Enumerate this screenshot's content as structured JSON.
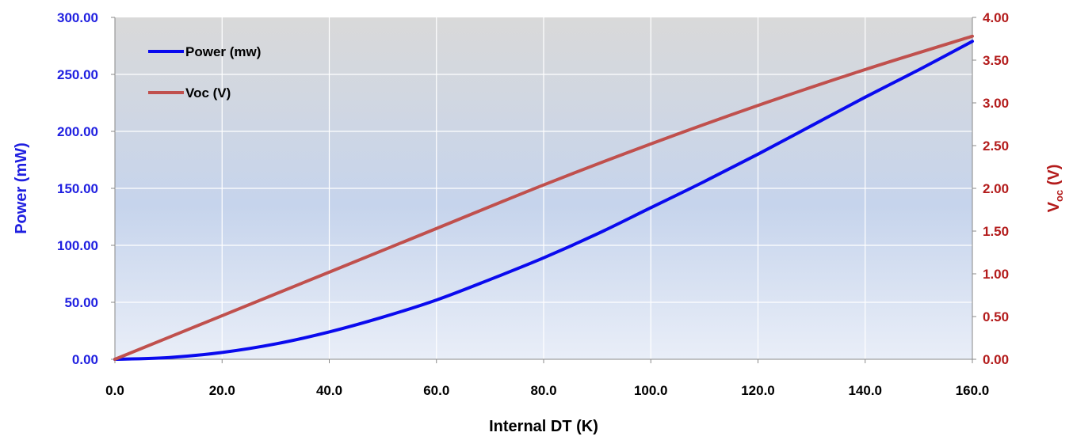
{
  "chart_data": {
    "type": "line",
    "title": "",
    "xlabel": "Internal DT (K)",
    "ylabel_left": "Power (mW)",
    "ylabel_right_main": "V",
    "ylabel_right_sub": "oc",
    "ylabel_right_suffix": " (V)",
    "xlim": [
      0,
      160
    ],
    "ylim_left": [
      0,
      300
    ],
    "ylim_right": [
      0,
      4
    ],
    "x_ticks": [
      "0.0",
      "20.0",
      "40.0",
      "60.0",
      "80.0",
      "100.0",
      "120.0",
      "140.0",
      "160.0"
    ],
    "y_left_ticks": [
      "0.00",
      "50.00",
      "100.00",
      "150.00",
      "200.00",
      "250.00",
      "300.00"
    ],
    "y_right_ticks": [
      "0.00",
      "0.50",
      "1.00",
      "1.50",
      "2.00",
      "2.50",
      "3.00",
      "3.50",
      "4.00"
    ],
    "grid": true,
    "legend_position": "top-left",
    "colors": {
      "power": "#0a0aee",
      "voc": "#c0504d",
      "left_axis": "#1f1fe0",
      "right_axis": "#b31b1b",
      "plot_bg_top": "#d9d9d9",
      "plot_bg_bottom": "#e9eef8"
    },
    "series": [
      {
        "name": "Power (mw)",
        "axis": "left",
        "color": "#0a0aee",
        "x": [
          0,
          10,
          20,
          30,
          40,
          50,
          60,
          70,
          80,
          90,
          100,
          110,
          120,
          130,
          140,
          150,
          160
        ],
        "values": [
          0,
          1.5,
          6,
          13.5,
          24,
          37,
          52,
          70,
          89,
          110,
          133,
          156,
          180,
          205,
          230,
          254,
          279
        ]
      },
      {
        "name": "Voc (V)",
        "axis": "right",
        "color": "#c0504d",
        "x": [
          0,
          20,
          40,
          60,
          80,
          100,
          120,
          140,
          160
        ],
        "values": [
          0,
          0.51,
          1.02,
          1.53,
          2.04,
          2.52,
          2.97,
          3.39,
          3.78
        ]
      }
    ]
  }
}
